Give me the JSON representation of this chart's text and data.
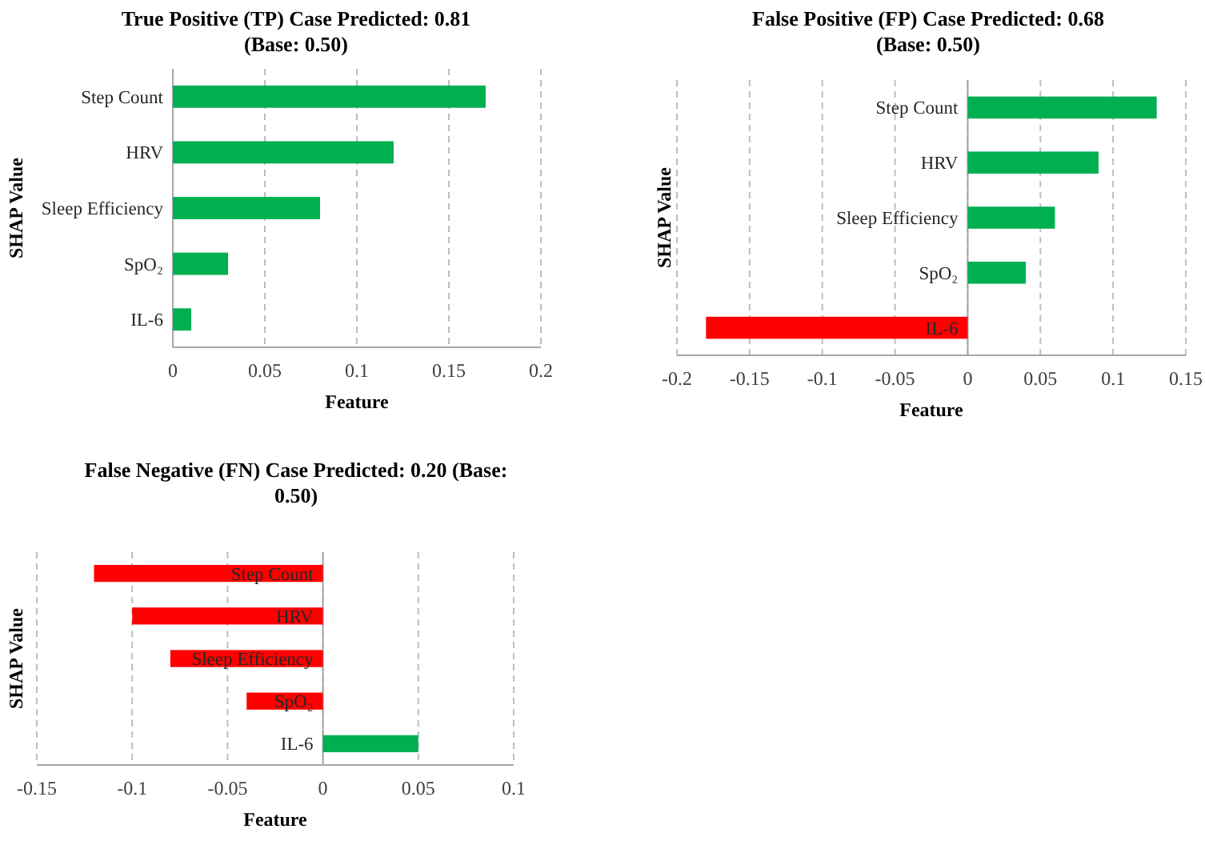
{
  "chart_data": [
    {
      "type": "bar",
      "orientation": "horizontal",
      "title": "True Positive (TP) Case Predicted: 0.81\n(Base: 0.50)",
      "xlabel": "Feature",
      "ylabel": "SHAP Value",
      "categories": [
        "Step Count",
        "HRV",
        "Sleep Efficiency",
        "SpO₂",
        "IL-6"
      ],
      "values": [
        0.17,
        0.12,
        0.08,
        0.03,
        0.01
      ],
      "colors": [
        "#00b050",
        "#00b050",
        "#00b050",
        "#00b050",
        "#00b050"
      ],
      "xlim": [
        0,
        0.2
      ],
      "xticks": [
        0,
        0.05,
        0.1,
        0.15,
        0.2
      ],
      "grid": "x"
    },
    {
      "type": "bar",
      "orientation": "horizontal",
      "title": "False Positive (FP) Case Predicted: 0.68\n(Base: 0.50)",
      "xlabel": "Feature",
      "ylabel": "SHAP Value",
      "categories": [
        "Step Count",
        "HRV",
        "Sleep Efficiency",
        "SpO₂",
        "IL-6"
      ],
      "values": [
        0.13,
        0.09,
        0.06,
        0.04,
        -0.18
      ],
      "colors": [
        "#00b050",
        "#00b050",
        "#00b050",
        "#00b050",
        "#ff0000"
      ],
      "xlim": [
        -0.2,
        0.15
      ],
      "xticks": [
        -0.2,
        -0.15,
        -0.1,
        -0.05,
        0,
        0.05,
        0.1,
        0.15
      ],
      "grid": "x"
    },
    {
      "type": "bar",
      "orientation": "horizontal",
      "title": "False Negative (FN) Case Predicted: 0.20 (Base:\n0.50)",
      "xlabel": "Feature",
      "ylabel": "SHAP Value",
      "categories": [
        "Step Count",
        "HRV",
        "Sleep Efficiency",
        "SpO₂",
        "IL-6"
      ],
      "values": [
        -0.12,
        -0.1,
        -0.08,
        -0.04,
        0.05
      ],
      "colors": [
        "#ff0000",
        "#ff0000",
        "#ff0000",
        "#ff0000",
        "#00b050"
      ],
      "xlim": [
        -0.15,
        0.1
      ],
      "xticks": [
        -0.15,
        -0.1,
        -0.05,
        0,
        0.05,
        0.1
      ],
      "grid": "x"
    }
  ]
}
